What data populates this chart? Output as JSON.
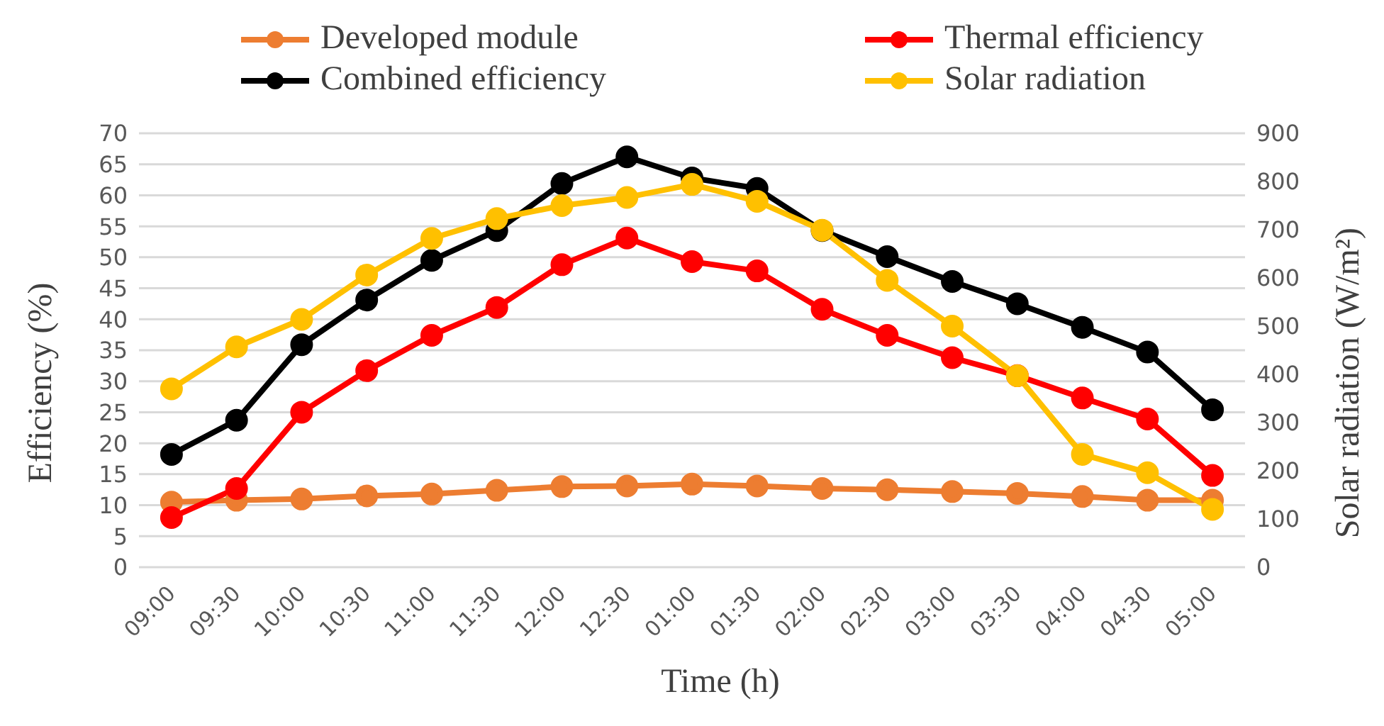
{
  "chart_data": {
    "type": "line",
    "xlabel": "Time (h)",
    "ylabel": "Efficiency (%)",
    "y2label": "Solar radiation (W/m²)",
    "categories": [
      "09:00",
      "09:30",
      "10:00",
      "10:30",
      "11:00",
      "11:30",
      "12:00",
      "12:30",
      "01:00",
      "01:30",
      "02:00",
      "02:30",
      "03:00",
      "03:30",
      "04:00",
      "04:30",
      "05:00"
    ],
    "series": [
      {
        "name": "Developed module",
        "color": "#ed7d31",
        "values": [
          10.5,
          10.8,
          11,
          11.5,
          11.8,
          12.4,
          13,
          13.1,
          13.4,
          13.1,
          12.7,
          12.5,
          12.2,
          11.9,
          11.4,
          10.8,
          10.8
        ]
      },
      {
        "name": "Thermal efficiency",
        "color": "#ff0000",
        "values": [
          8,
          12.7,
          25,
          31.7,
          37.4,
          41.9,
          48.8,
          53.1,
          49.3,
          47.8,
          41.6,
          37.4,
          33.8,
          30.9,
          27.3,
          23.9,
          14.8
        ]
      },
      {
        "name": "Combined efficiency",
        "color": "#000000",
        "values": [
          18.2,
          23.7,
          35.9,
          43.1,
          49.5,
          54.3,
          61.9,
          66.2,
          62.8,
          61.1,
          54.3,
          50.1,
          46.1,
          42.5,
          38.7,
          34.7,
          25.4
        ]
      },
      {
        "name": "Solar radiation",
        "color": "#ffc000",
        "axis": "y2",
        "values": [
          370,
          457,
          514,
          606,
          682,
          723,
          750,
          767,
          794,
          759,
          699,
          595,
          500,
          397,
          234,
          196,
          120
        ]
      }
    ],
    "ylim": [
      0,
      70
    ],
    "yticks": [
      0,
      5,
      10,
      15,
      20,
      25,
      30,
      35,
      40,
      45,
      50,
      55,
      60,
      65,
      70
    ],
    "y2lim": [
      0,
      900
    ],
    "y2ticks": [
      0,
      100,
      200,
      300,
      400,
      500,
      600,
      700,
      800,
      900
    ],
    "grid": "y",
    "legend": "top",
    "marker": "circle",
    "line_style": "solid"
  }
}
